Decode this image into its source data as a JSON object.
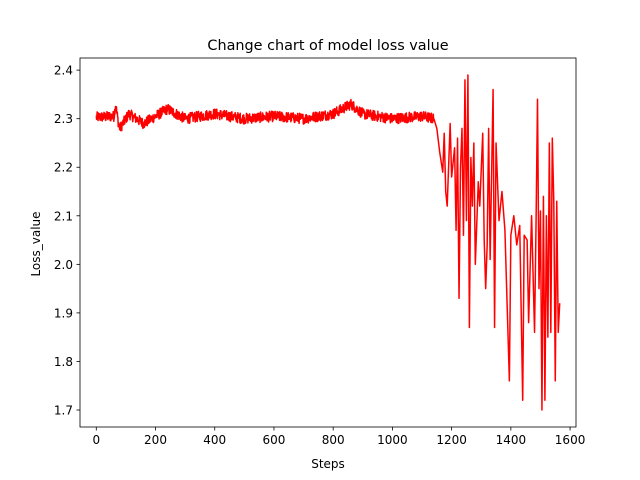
{
  "chart_data": {
    "type": "line",
    "title": "Change chart of model loss value",
    "xlabel": "Steps",
    "ylabel": "Loss_value",
    "xlim": [
      -55,
      1620
    ],
    "ylim": [
      1.665,
      2.425
    ],
    "xticks": [
      0,
      200,
      400,
      600,
      800,
      1000,
      1200,
      1400,
      1600
    ],
    "yticks": [
      1.7,
      1.8,
      1.9,
      2.0,
      2.1,
      2.2,
      2.3,
      2.4
    ],
    "grid": false,
    "series": [
      {
        "color": "#ff0000",
        "points": [
          [
            0,
            2.303
          ],
          [
            60,
            2.305
          ],
          [
            65,
            2.33
          ],
          [
            75,
            2.29
          ],
          [
            80,
            2.28
          ],
          [
            110,
            2.31
          ],
          [
            160,
            2.29
          ],
          [
            240,
            2.32
          ],
          [
            300,
            2.3
          ],
          [
            400,
            2.31
          ],
          [
            500,
            2.3
          ],
          [
            600,
            2.305
          ],
          [
            700,
            2.3
          ],
          [
            800,
            2.31
          ],
          [
            860,
            2.33
          ],
          [
            900,
            2.31
          ],
          [
            1000,
            2.3
          ],
          [
            1100,
            2.305
          ],
          [
            1140,
            2.3
          ],
          [
            1150,
            2.28
          ],
          [
            1160,
            2.23
          ],
          [
            1170,
            2.19
          ],
          [
            1175,
            2.27
          ],
          [
            1180,
            2.15
          ],
          [
            1185,
            2.12
          ],
          [
            1195,
            2.29
          ],
          [
            1200,
            2.18
          ],
          [
            1210,
            2.24
          ],
          [
            1215,
            2.07
          ],
          [
            1220,
            2.26
          ],
          [
            1225,
            1.93
          ],
          [
            1230,
            2.2
          ],
          [
            1235,
            2.28
          ],
          [
            1240,
            2.06
          ],
          [
            1245,
            2.38
          ],
          [
            1250,
            2.09
          ],
          [
            1255,
            2.39
          ],
          [
            1260,
            1.87
          ],
          [
            1265,
            2.22
          ],
          [
            1270,
            2.12
          ],
          [
            1275,
            2.25
          ],
          [
            1280,
            2.0
          ],
          [
            1290,
            2.17
          ],
          [
            1295,
            2.12
          ],
          [
            1305,
            2.27
          ],
          [
            1310,
            2.05
          ],
          [
            1315,
            1.95
          ],
          [
            1320,
            2.04
          ],
          [
            1325,
            2.28
          ],
          [
            1330,
            2.01
          ],
          [
            1340,
            2.36
          ],
          [
            1345,
            1.87
          ],
          [
            1350,
            2.25
          ],
          [
            1360,
            2.09
          ],
          [
            1370,
            2.15
          ],
          [
            1380,
            2.07
          ],
          [
            1395,
            1.76
          ],
          [
            1400,
            2.06
          ],
          [
            1410,
            2.1
          ],
          [
            1420,
            2.04
          ],
          [
            1430,
            2.08
          ],
          [
            1440,
            1.72
          ],
          [
            1445,
            2.06
          ],
          [
            1455,
            2.05
          ],
          [
            1460,
            1.88
          ],
          [
            1470,
            2.1
          ],
          [
            1480,
            1.86
          ],
          [
            1485,
            2.08
          ],
          [
            1490,
            2.34
          ],
          [
            1495,
            1.95
          ],
          [
            1500,
            2.11
          ],
          [
            1505,
            1.7
          ],
          [
            1510,
            2.14
          ],
          [
            1515,
            1.72
          ],
          [
            1520,
            2.1
          ],
          [
            1525,
            1.85
          ],
          [
            1530,
            2.25
          ],
          [
            1535,
            1.86
          ],
          [
            1540,
            2.26
          ],
          [
            1545,
            2.13
          ],
          [
            1550,
            1.76
          ],
          [
            1555,
            2.13
          ],
          [
            1560,
            1.86
          ],
          [
            1565,
            1.92
          ]
        ]
      }
    ]
  }
}
